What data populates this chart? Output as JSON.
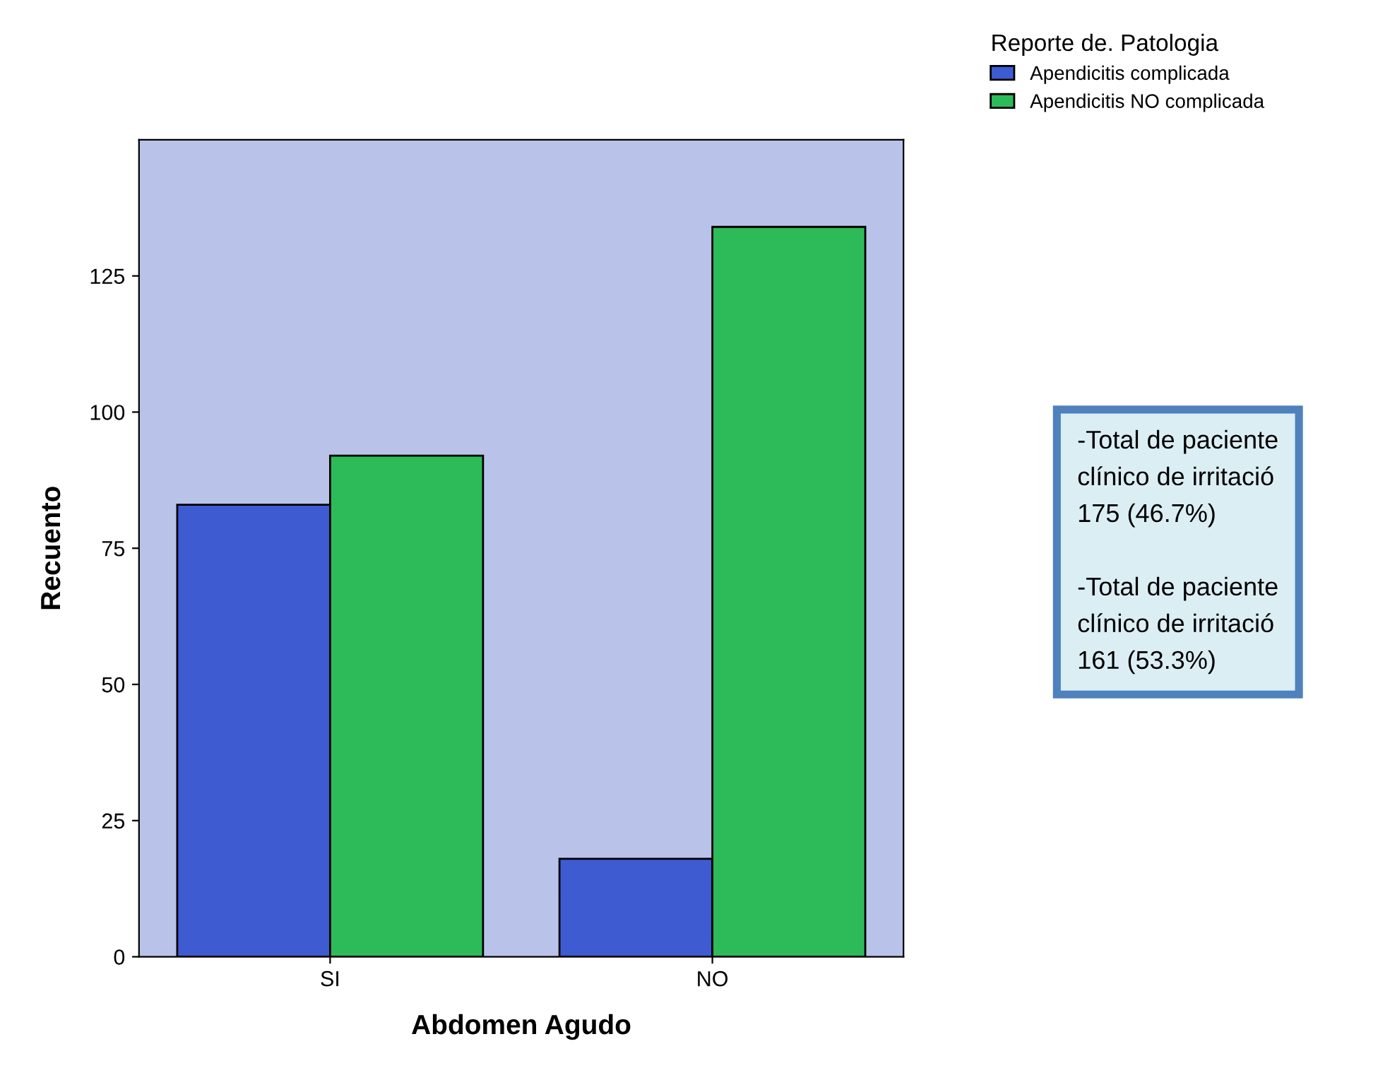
{
  "chart_data": {
    "type": "bar",
    "xlabel": "Abdomen Agudo",
    "ylabel": "Recuento",
    "legend_title": "Reporte de. Patologia",
    "categories": [
      "SI",
      "NO"
    ],
    "series": [
      {
        "name": "Apendicitis complicada",
        "color": "#3f5bd2",
        "values": [
          83,
          18
        ]
      },
      {
        "name": "Apendicitis NO complicada",
        "color": "#2dbb5a",
        "values": [
          92,
          134
        ]
      }
    ],
    "ylim": [
      0,
      150
    ],
    "yticks": [
      0,
      25,
      50,
      75,
      100,
      125
    ],
    "grid": false,
    "legend": "top right",
    "annotations": [
      "-Total de paciente\nclínico de irritació\n175 (46.7%)\n\n-Total de paciente\nclínico de irritació\n161 (53.3%)"
    ]
  }
}
